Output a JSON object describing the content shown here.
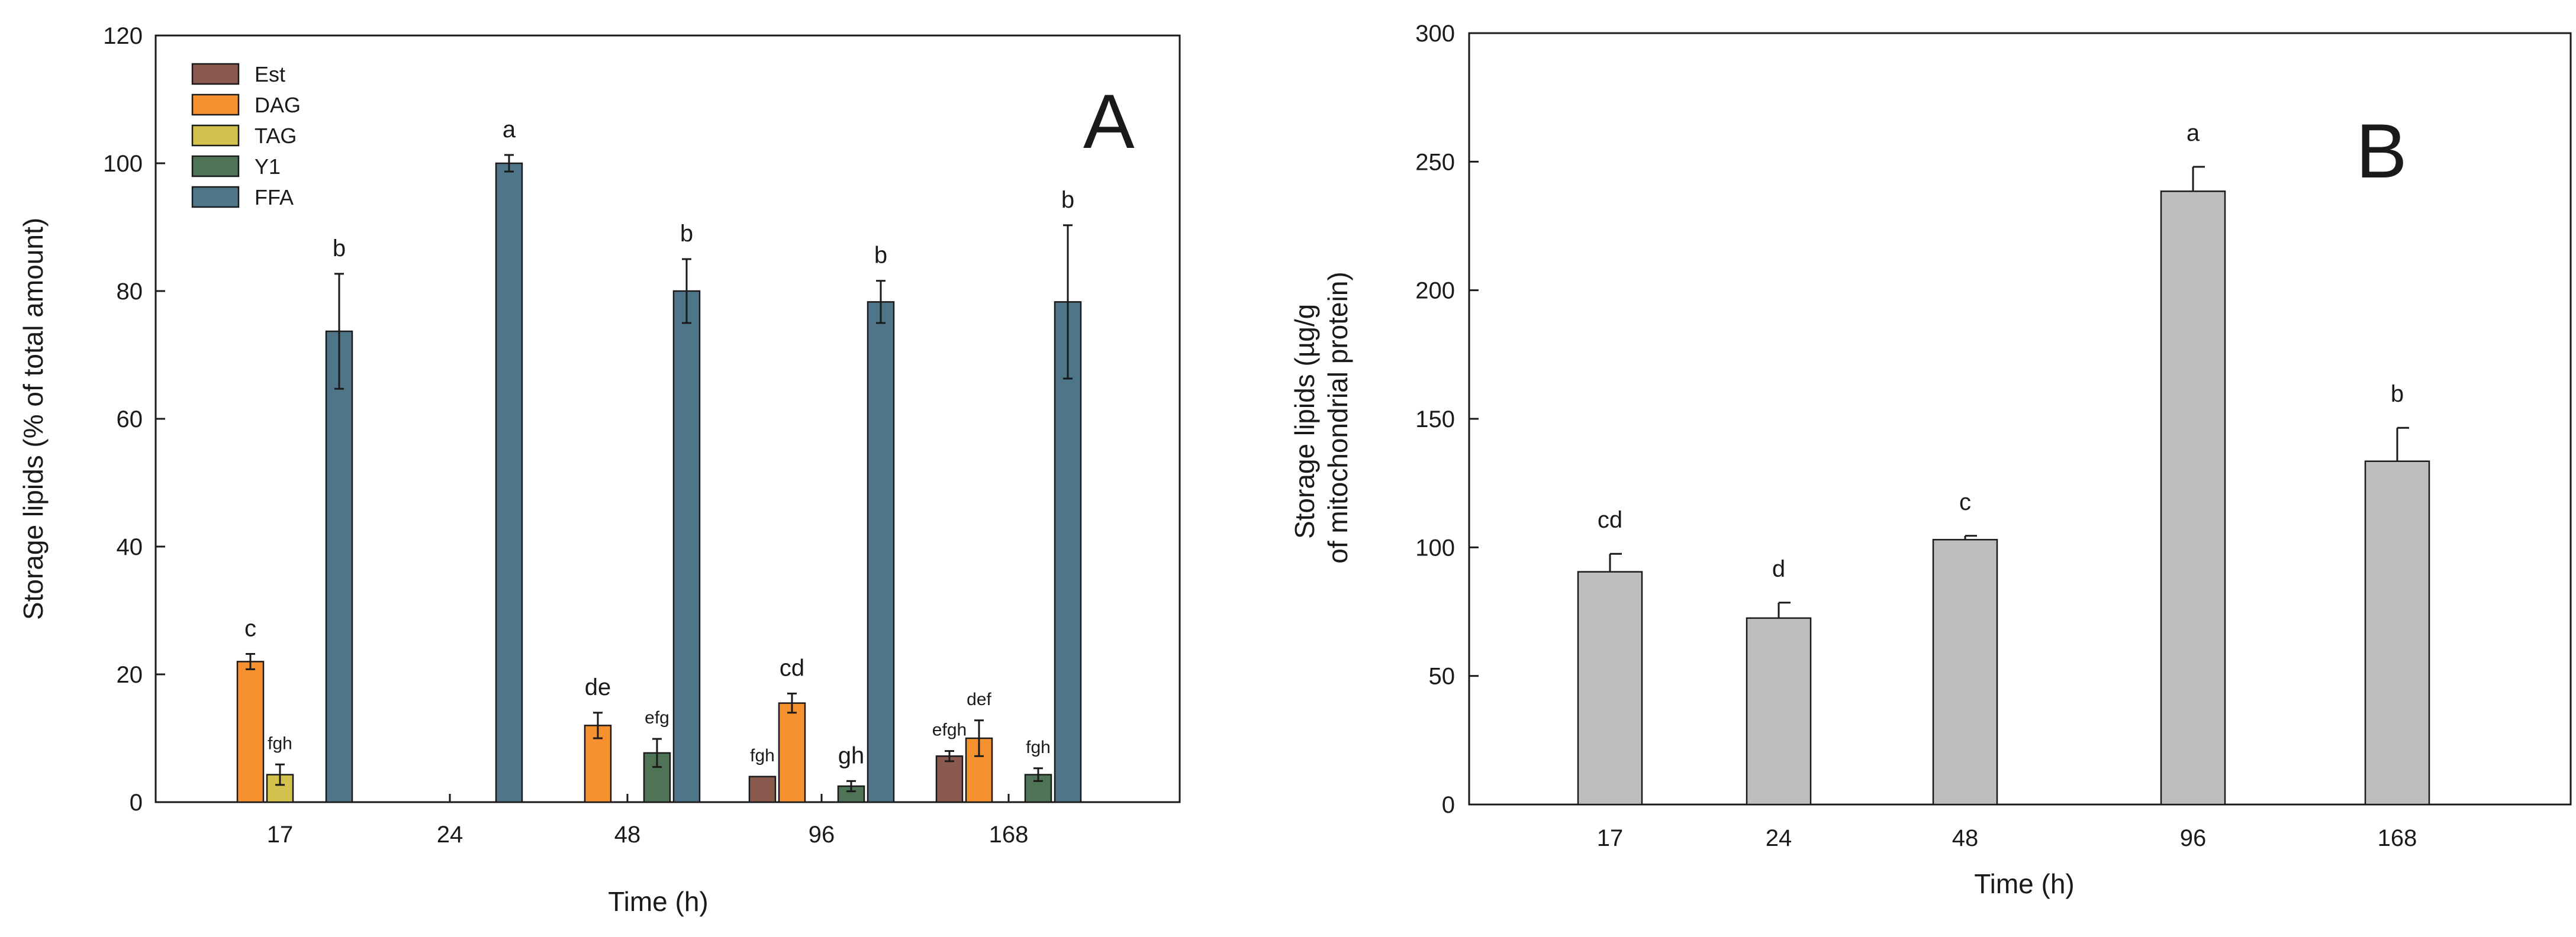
{
  "chart_data": [
    {
      "id": "A",
      "type": "bar",
      "panel_letter": "A",
      "title": "",
      "xlabel": "Time (h)",
      "ylabel": "Storage lipids (% of total amount)",
      "ylim": [
        0,
        120
      ],
      "yticks": [
        0,
        20,
        40,
        60,
        80,
        100,
        120
      ],
      "categories": [
        "17",
        "24",
        "48",
        "96",
        "168"
      ],
      "legend_position": "top-left",
      "series": [
        {
          "name": "Est",
          "color": "#8B5A4E",
          "values": [
            null,
            null,
            null,
            4,
            7.2
          ],
          "errors": [
            null,
            null,
            null,
            0,
            0.8
          ],
          "labels": [
            null,
            null,
            null,
            "fgh",
            "efgh"
          ]
        },
        {
          "name": "DAG",
          "color": "#F5922F",
          "values": [
            22,
            null,
            12,
            15.5,
            10
          ],
          "errors": [
            1.2,
            null,
            2,
            1.5,
            2.8
          ],
          "labels": [
            "c",
            null,
            "de",
            "cd",
            "def"
          ]
        },
        {
          "name": "TAG",
          "color": "#D4C24E",
          "values": [
            4.3,
            null,
            null,
            null,
            null
          ],
          "errors": [
            1.6,
            null,
            null,
            null,
            null
          ],
          "labels": [
            "fgh",
            null,
            null,
            null,
            null
          ]
        },
        {
          "name": "Y1",
          "color": "#4F7355",
          "values": [
            null,
            null,
            7.7,
            2.5,
            4.3
          ],
          "errors": [
            null,
            null,
            2.2,
            0.8,
            1
          ],
          "labels": [
            null,
            null,
            "efg",
            "gh",
            "fgh"
          ]
        },
        {
          "name": "FFA",
          "color": "#4F7589",
          "values": [
            73.7,
            100,
            80,
            78.3,
            78.3
          ],
          "errors": [
            9,
            1.3,
            5,
            3.3,
            12
          ],
          "labels": [
            "b",
            "a",
            "b",
            "b",
            "b"
          ]
        }
      ]
    },
    {
      "id": "B",
      "type": "bar",
      "panel_letter": "B",
      "title": "",
      "xlabel": "Time (h)",
      "ylabel": [
        "Storage lipids (µg/g",
        "of mitochondrial protein)"
      ],
      "ylim": [
        0,
        300
      ],
      "yticks": [
        0,
        50,
        100,
        150,
        200,
        250,
        300
      ],
      "categories": [
        "17",
        "24",
        "48",
        "96",
        "168"
      ],
      "series": [
        {
          "name": "Storage lipids",
          "color": "#BEBEBE",
          "values": [
            90.5,
            72.5,
            103,
            238.5,
            133.5
          ],
          "errors": [
            7,
            6,
            1.5,
            9.5,
            13
          ],
          "labels": [
            "cd",
            "d",
            "c",
            "a",
            "b"
          ]
        }
      ]
    }
  ]
}
